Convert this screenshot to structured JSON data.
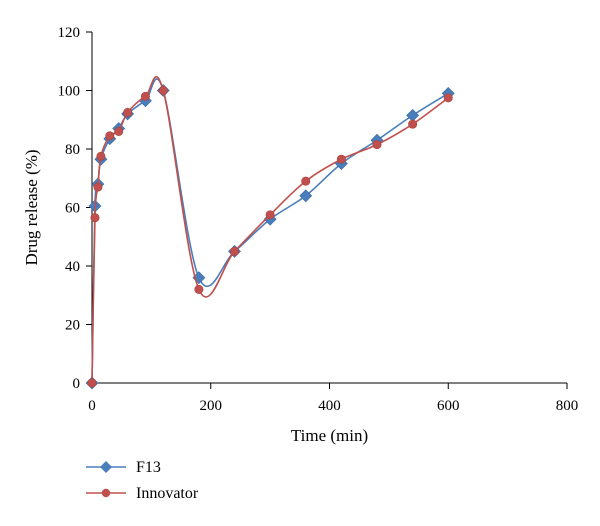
{
  "chart_data": {
    "type": "line",
    "title": "",
    "xlabel": "Time (min)",
    "ylabel": "Drug release (%)",
    "xlim": [
      0,
      800
    ],
    "ylim": [
      0,
      120
    ],
    "xticks": [
      0,
      200,
      400,
      600,
      800
    ],
    "yticks": [
      0,
      20,
      40,
      60,
      80,
      100,
      120
    ],
    "grid": false,
    "legend_position": "bottom-left",
    "series": [
      {
        "name": "F13",
        "color": "#4a7ebb",
        "marker": "diamond",
        "points": [
          [
            0,
            0
          ],
          [
            5,
            60.5
          ],
          [
            10,
            68
          ],
          [
            15,
            76.5
          ],
          [
            30,
            83.5
          ],
          [
            45,
            87
          ],
          [
            60,
            92
          ],
          [
            90,
            96.5
          ],
          [
            120,
            100
          ],
          [
            180,
            36
          ],
          [
            240,
            45
          ],
          [
            300,
            56
          ],
          [
            360,
            64
          ],
          [
            420,
            75
          ],
          [
            480,
            83
          ],
          [
            540,
            91.5
          ],
          [
            600,
            99
          ]
        ]
      },
      {
        "name": "Innovator",
        "color": "#c0504d",
        "marker": "circle",
        "points": [
          [
            0,
            0
          ],
          [
            5,
            56.5
          ],
          [
            10,
            67
          ],
          [
            15,
            77.5
          ],
          [
            30,
            84.5
          ],
          [
            45,
            86
          ],
          [
            60,
            92.5
          ],
          [
            90,
            98
          ],
          [
            120,
            100
          ],
          [
            180,
            32
          ],
          [
            240,
            45
          ],
          [
            300,
            57.5
          ],
          [
            360,
            69
          ],
          [
            420,
            76.5
          ],
          [
            480,
            81.5
          ],
          [
            540,
            88.5
          ],
          [
            600,
            97.5
          ]
        ]
      }
    ]
  }
}
